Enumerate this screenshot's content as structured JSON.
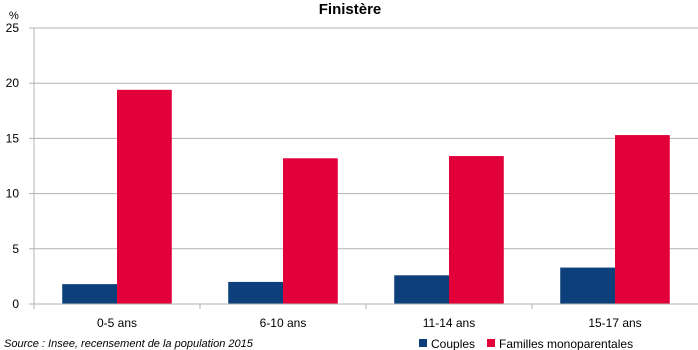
{
  "chart_data": {
    "type": "bar",
    "title": "Finistère",
    "unit_label": "%",
    "ylim": [
      0,
      25
    ],
    "yticks": [
      0,
      5,
      10,
      15,
      20,
      25
    ],
    "grid": true,
    "legend_position": "bottom-right",
    "categories": [
      "0-5 ans",
      "6-10 ans",
      "11-14 ans",
      "15-17 ans"
    ],
    "series": [
      {
        "name": "Couples",
        "color": "#0d3f7a",
        "values": [
          1.8,
          2.0,
          2.6,
          3.3
        ]
      },
      {
        "name": "Familles monoparentales",
        "color": "#e2003b",
        "values": [
          19.4,
          13.2,
          13.4,
          15.3
        ]
      }
    ],
    "source": "Source : Insee, recensement de la population 2015"
  }
}
